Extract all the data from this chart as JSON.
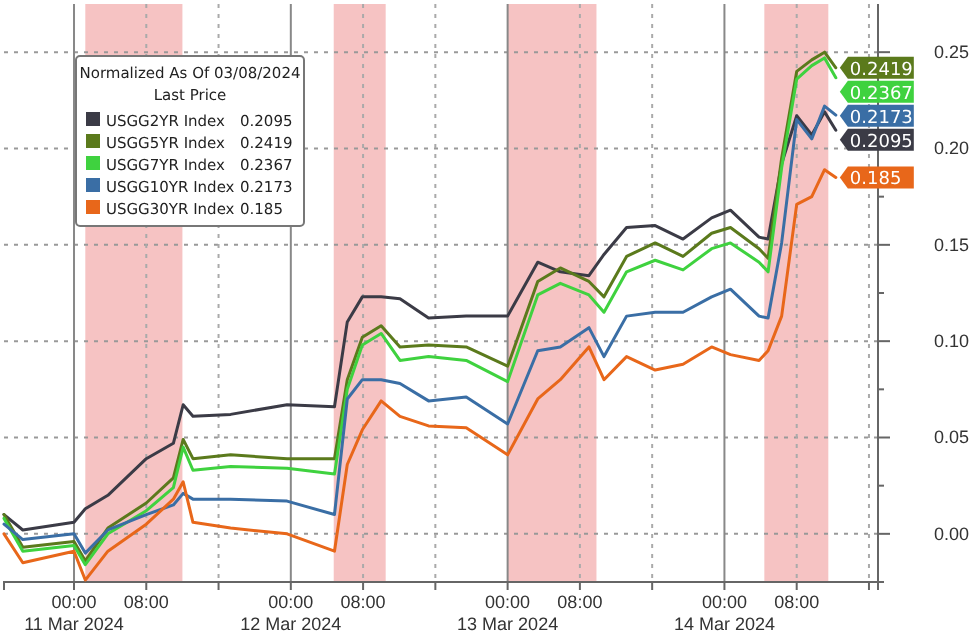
{
  "chart_data": {
    "type": "line",
    "legend_title": "Normalized As Of 03/08/2024\nLast Price",
    "legend": "top left",
    "grid": true,
    "marker": "none",
    "line_style": "solid",
    "x": [
      "2024-03-10T16:15",
      "2024-03-10T18:20",
      "2024-03-11T00:00",
      "2024-03-11T01:15",
      "2024-03-11T03:45",
      "2024-03-11T08:00",
      "2024-03-11T11:00",
      "2024-03-11T12:05",
      "2024-03-11T13:10",
      "2024-03-11T17:20",
      "2024-03-11T23:35",
      "2024-03-12T04:50",
      "2024-03-12T06:15",
      "2024-03-12T07:55",
      "2024-03-12T10:00",
      "2024-03-12T12:05",
      "2024-03-12T15:15",
      "2024-03-12T19:25",
      "2024-03-13T00:00",
      "2024-03-13T03:20",
      "2024-03-13T05:50",
      "2024-03-13T09:00",
      "2024-03-13T10:40",
      "2024-03-13T13:10",
      "2024-03-13T16:20",
      "2024-03-13T19:25",
      "2024-03-13T22:35",
      "2024-03-14T00:40",
      "2024-03-14T03:50",
      "2024-03-14T04:50",
      "2024-03-14T06:20",
      "2024-03-14T08:00",
      "2024-03-14T09:40",
      "2024-03-14T11:05",
      "2024-03-14T12:20"
    ],
    "series": [
      {
        "name": "USGG2YR Index",
        "color": "#3b3b46",
        "values": [
          0.01,
          0.002,
          0.006,
          0.013,
          0.02,
          0.039,
          0.047,
          0.067,
          0.061,
          0.062,
          0.067,
          0.066,
          0.11,
          0.123,
          0.123,
          0.122,
          0.112,
          0.113,
          0.113,
          0.141,
          0.136,
          0.134,
          0.145,
          0.159,
          0.16,
          0.153,
          0.164,
          0.168,
          0.154,
          0.153,
          0.192,
          0.217,
          0.207,
          0.219,
          0.2095
        ],
        "value_labels": [
          null,
          null,
          null,
          null,
          null,
          null,
          null,
          null,
          null,
          null,
          null,
          null,
          null,
          null,
          null,
          null,
          null,
          null,
          null,
          null,
          null,
          null,
          null,
          null,
          null,
          null,
          null,
          null,
          null,
          null,
          null,
          null,
          null,
          null,
          "0.2095"
        ]
      },
      {
        "name": "USGG5YR Index",
        "color": "#5b7a1c",
        "values": [
          0.01,
          -0.007,
          -0.004,
          -0.014,
          0.003,
          0.016,
          0.029,
          0.049,
          0.039,
          0.041,
          0.039,
          0.039,
          0.08,
          0.102,
          0.108,
          0.097,
          0.098,
          0.097,
          0.087,
          0.131,
          0.138,
          0.131,
          0.123,
          0.144,
          0.151,
          0.144,
          0.156,
          0.159,
          0.148,
          0.143,
          0.195,
          0.24,
          0.246,
          0.25,
          0.2419
        ],
        "value_labels": [
          null,
          null,
          null,
          null,
          null,
          null,
          null,
          null,
          null,
          null,
          null,
          null,
          null,
          null,
          null,
          null,
          null,
          null,
          null,
          null,
          null,
          null,
          null,
          null,
          null,
          null,
          null,
          null,
          null,
          null,
          null,
          null,
          null,
          null,
          "0.2419"
        ]
      },
      {
        "name": "USGG7YR Index",
        "color": "#3fd23f",
        "values": [
          0.008,
          -0.009,
          -0.006,
          -0.016,
          0.0,
          0.012,
          0.024,
          0.045,
          0.033,
          0.035,
          0.034,
          0.031,
          0.075,
          0.098,
          0.104,
          0.09,
          0.092,
          0.09,
          0.079,
          0.124,
          0.13,
          0.124,
          0.115,
          0.136,
          0.142,
          0.137,
          0.148,
          0.151,
          0.141,
          0.136,
          0.19,
          0.236,
          0.243,
          0.247,
          0.2367
        ],
        "value_labels": [
          null,
          null,
          null,
          null,
          null,
          null,
          null,
          null,
          null,
          null,
          null,
          null,
          null,
          null,
          null,
          null,
          null,
          null,
          null,
          null,
          null,
          null,
          null,
          null,
          null,
          null,
          null,
          null,
          null,
          null,
          null,
          null,
          null,
          null,
          "0.2367"
        ]
      },
      {
        "name": "USGG10YR Index",
        "color": "#3a6ea5",
        "values": [
          0.005,
          -0.003,
          0.0,
          -0.01,
          0.002,
          0.01,
          0.015,
          0.021,
          0.018,
          0.018,
          0.017,
          0.01,
          0.07,
          0.08,
          0.08,
          0.078,
          0.069,
          0.071,
          0.057,
          0.095,
          0.097,
          0.107,
          0.092,
          0.113,
          0.115,
          0.115,
          0.123,
          0.127,
          0.113,
          0.112,
          0.151,
          0.215,
          0.205,
          0.222,
          0.2173
        ],
        "value_labels": [
          null,
          null,
          null,
          null,
          null,
          null,
          null,
          null,
          null,
          null,
          null,
          null,
          null,
          null,
          null,
          null,
          null,
          null,
          null,
          null,
          null,
          null,
          null,
          null,
          null,
          null,
          null,
          null,
          null,
          null,
          null,
          null,
          null,
          null,
          "0.2173"
        ]
      },
      {
        "name": "USGG30YR Index",
        "color": "#e8671a",
        "values": [
          0.0,
          -0.015,
          -0.009,
          -0.024,
          -0.009,
          0.005,
          0.018,
          0.027,
          0.006,
          0.003,
          0.0,
          -0.009,
          0.036,
          0.054,
          0.069,
          0.061,
          0.056,
          0.055,
          0.041,
          0.07,
          0.08,
          0.097,
          0.08,
          0.092,
          0.085,
          0.088,
          0.097,
          0.093,
          0.09,
          0.095,
          0.113,
          0.171,
          0.175,
          0.189,
          0.185
        ],
        "value_labels": [
          null,
          null,
          null,
          null,
          null,
          null,
          null,
          null,
          null,
          null,
          null,
          null,
          null,
          null,
          null,
          null,
          null,
          null,
          null,
          null,
          null,
          null,
          null,
          null,
          null,
          null,
          null,
          null,
          null,
          null,
          null,
          null,
          null,
          null,
          "0.185"
        ]
      }
    ],
    "xlim": [
      "2024-03-10T16:15",
      "2024-03-14T17:00"
    ],
    "xticks": [
      {
        "value": "2024-03-11T00:00",
        "label": "00:00\n11 Mar 2024"
      },
      {
        "value": "2024-03-11T08:00",
        "label": "08:00"
      },
      {
        "value": "2024-03-11T16:00",
        "label": null
      },
      {
        "value": "2024-03-12T00:00",
        "label": "00:00\n12 Mar 2024"
      },
      {
        "value": "2024-03-12T08:00",
        "label": "08:00"
      },
      {
        "value": "2024-03-12T16:00",
        "label": null
      },
      {
        "value": "2024-03-13T00:00",
        "label": "00:00\n13 Mar 2024"
      },
      {
        "value": "2024-03-13T08:00",
        "label": "08:00"
      },
      {
        "value": "2024-03-13T16:00",
        "label": null
      },
      {
        "value": "2024-03-14T00:00",
        "label": "00:00\n14 Mar 2024"
      },
      {
        "value": "2024-03-14T08:00",
        "label": "08:00"
      },
      {
        "value": "2024-03-14T16:00",
        "label": null
      }
    ],
    "ylim": [
      -0.025,
      0.275
    ],
    "yticks": [
      {
        "value": -0.025,
        "label": null
      },
      {
        "value": 0,
        "label": "0.00"
      },
      {
        "value": 0.025,
        "label": null
      },
      {
        "value": 0.05,
        "label": "0.05"
      },
      {
        "value": 0.075,
        "label": null
      },
      {
        "value": 0.1,
        "label": "0.10"
      },
      {
        "value": 0.125,
        "label": null
      },
      {
        "value": 0.15,
        "label": "0.15"
      },
      {
        "value": 0.175,
        "label": null
      },
      {
        "value": 0.2,
        "label": "0.20"
      },
      {
        "value": 0.225,
        "label": null
      },
      {
        "value": 0.25,
        "label": "0.25"
      }
    ],
    "bands": [
      {
        "axis": "x",
        "from": "2024-03-11T01:15",
        "to": "2024-03-11T12:00",
        "color": "#f4b4b4"
      },
      {
        "axis": "x",
        "from": "2024-03-12T04:45",
        "to": "2024-03-12T10:30",
        "color": "#f4b4b4"
      },
      {
        "axis": "x",
        "from": "2024-03-13T00:00",
        "to": "2024-03-13T09:50",
        "color": "#f4b4b4"
      },
      {
        "axis": "x",
        "from": "2024-03-14T04:25",
        "to": "2024-03-14T11:30",
        "color": "#f4b4b4"
      }
    ]
  }
}
